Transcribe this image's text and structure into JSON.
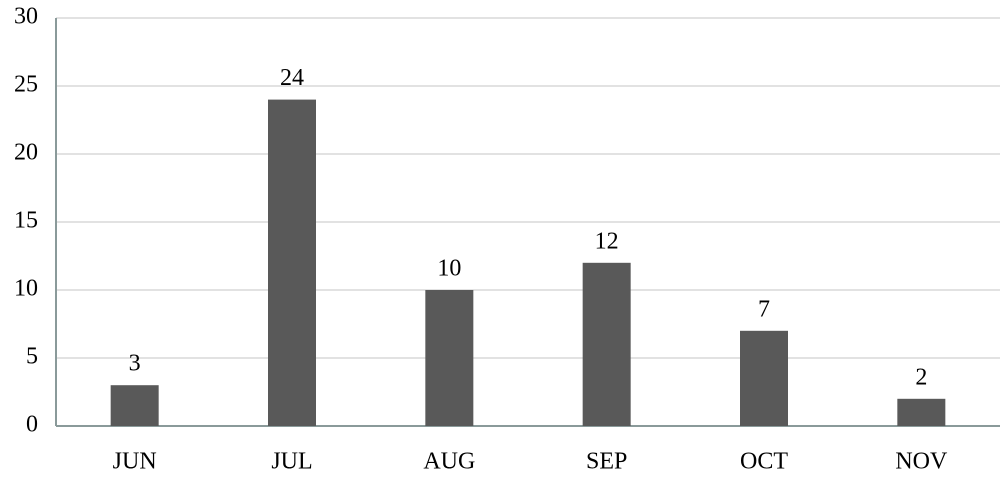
{
  "chart_data": {
    "type": "bar",
    "categories": [
      "JUN",
      "JUL",
      "AUG",
      "SEP",
      "OCT",
      "NOV"
    ],
    "values": [
      3,
      24,
      10,
      12,
      7,
      2
    ],
    "color": "#595959",
    "ylim": [
      0,
      30
    ],
    "yticks": [
      0,
      5,
      10,
      15,
      20,
      25,
      30
    ],
    "grid": true
  }
}
